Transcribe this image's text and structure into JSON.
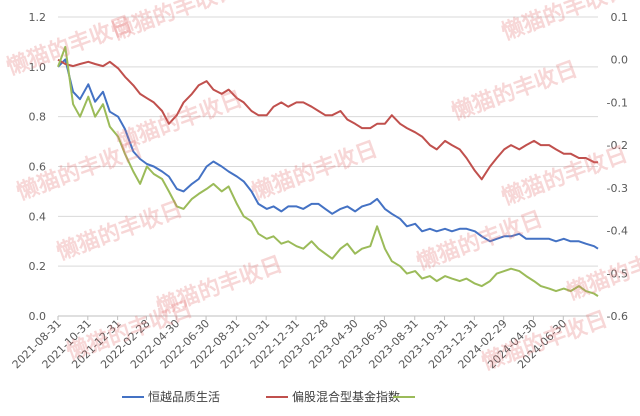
{
  "watermark": "懒猫的丰收日",
  "chart_data": {
    "type": "line",
    "x_tick_labels": [
      "2021-08-31",
      "2021-10-31",
      "2021-12-31",
      "2022-02-28",
      "2022-04-30",
      "2022-06-30",
      "2022-08-31",
      "2022-10-31",
      "2022-12-31",
      "2023-02-28",
      "2023-04-30",
      "2023-06-30",
      "2023-08-31",
      "2023-10-31",
      "2023-12-31",
      "2024-02-29",
      "2024-04-30",
      "2024-06-30"
    ],
    "xlim": [
      "2021-08-31",
      "2024-09-09"
    ],
    "y_left": {
      "ylim": [
        0.0,
        1.2
      ],
      "ticks": [
        "0.0",
        "0.2",
        "0.4",
        "0.6",
        "0.8",
        "1.0",
        "1.2"
      ]
    },
    "y_right": {
      "ylim": [
        -0.6,
        0.1
      ],
      "ticks": [
        "-0.6",
        "-0.5",
        "-0.4",
        "-0.3",
        "-0.2",
        "-0.1",
        "0.0",
        "0.1"
      ]
    },
    "grid": "horizontal",
    "legend_position": "bottom",
    "series": [
      {
        "name": "恒越品质生活",
        "axis": "left",
        "color": "#4472C4",
        "x": [
          "2021-08-31",
          "2021-09-15",
          "2021-10-01",
          "2021-10-15",
          "2021-11-01",
          "2021-11-15",
          "2021-12-01",
          "2021-12-15",
          "2022-01-01",
          "2022-01-15",
          "2022-02-01",
          "2022-02-15",
          "2022-03-01",
          "2022-03-15",
          "2022-04-01",
          "2022-04-15",
          "2022-05-01",
          "2022-05-15",
          "2022-06-01",
          "2022-06-15",
          "2022-07-01",
          "2022-07-15",
          "2022-08-01",
          "2022-08-15",
          "2022-09-01",
          "2022-09-15",
          "2022-10-01",
          "2022-10-15",
          "2022-11-01",
          "2022-11-15",
          "2022-12-01",
          "2022-12-15",
          "2023-01-01",
          "2023-01-15",
          "2023-02-01",
          "2023-02-15",
          "2023-03-01",
          "2023-03-15",
          "2023-04-01",
          "2023-04-15",
          "2023-05-01",
          "2023-05-15",
          "2023-06-01",
          "2023-06-15",
          "2023-07-01",
          "2023-07-15",
          "2023-08-01",
          "2023-08-15",
          "2023-09-01",
          "2023-09-15",
          "2023-10-01",
          "2023-10-15",
          "2023-11-01",
          "2023-11-15",
          "2023-12-01",
          "2023-12-15",
          "2024-01-01",
          "2024-01-15",
          "2024-02-01",
          "2024-02-15",
          "2024-03-01",
          "2024-03-15",
          "2024-04-01",
          "2024-04-15",
          "2024-05-01",
          "2024-05-15",
          "2024-06-01",
          "2024-06-15",
          "2024-07-01",
          "2024-07-15",
          "2024-08-01",
          "2024-08-15",
          "2024-09-01",
          "2024-09-09"
        ],
        "values": [
          1.0,
          1.03,
          0.9,
          0.87,
          0.93,
          0.86,
          0.9,
          0.82,
          0.8,
          0.75,
          0.66,
          0.63,
          0.61,
          0.6,
          0.58,
          0.56,
          0.51,
          0.5,
          0.53,
          0.55,
          0.6,
          0.62,
          0.6,
          0.58,
          0.56,
          0.54,
          0.5,
          0.45,
          0.43,
          0.44,
          0.42,
          0.44,
          0.44,
          0.43,
          0.45,
          0.45,
          0.43,
          0.41,
          0.43,
          0.44,
          0.42,
          0.44,
          0.45,
          0.47,
          0.43,
          0.41,
          0.39,
          0.36,
          0.37,
          0.34,
          0.35,
          0.34,
          0.35,
          0.34,
          0.35,
          0.35,
          0.34,
          0.32,
          0.3,
          0.31,
          0.32,
          0.32,
          0.33,
          0.31,
          0.31,
          0.31,
          0.31,
          0.3,
          0.31,
          0.3,
          0.3,
          0.29,
          0.28,
          0.27
        ]
      },
      {
        "name": "偏股混合型基金指数",
        "axis": "right",
        "color": "#C0504D",
        "x": [
          "2021-08-31",
          "2021-09-15",
          "2021-10-01",
          "2021-10-15",
          "2021-11-01",
          "2021-11-15",
          "2021-12-01",
          "2021-12-15",
          "2022-01-01",
          "2022-01-15",
          "2022-02-01",
          "2022-02-15",
          "2022-03-01",
          "2022-03-15",
          "2022-04-01",
          "2022-04-15",
          "2022-05-01",
          "2022-05-15",
          "2022-06-01",
          "2022-06-15",
          "2022-07-01",
          "2022-07-15",
          "2022-08-01",
          "2022-08-15",
          "2022-09-01",
          "2022-09-15",
          "2022-10-01",
          "2022-10-15",
          "2022-11-01",
          "2022-11-15",
          "2022-12-01",
          "2022-12-15",
          "2023-01-01",
          "2023-01-15",
          "2023-02-01",
          "2023-02-15",
          "2023-03-01",
          "2023-03-15",
          "2023-04-01",
          "2023-04-15",
          "2023-05-01",
          "2023-05-15",
          "2023-06-01",
          "2023-06-15",
          "2023-07-01",
          "2023-07-15",
          "2023-08-01",
          "2023-08-15",
          "2023-09-01",
          "2023-09-15",
          "2023-10-01",
          "2023-10-15",
          "2023-11-01",
          "2023-11-15",
          "2023-12-01",
          "2023-12-15",
          "2024-01-01",
          "2024-01-15",
          "2024-02-01",
          "2024-02-15",
          "2024-03-01",
          "2024-03-15",
          "2024-04-01",
          "2024-04-15",
          "2024-05-01",
          "2024-05-15",
          "2024-06-01",
          "2024-06-15",
          "2024-07-01",
          "2024-07-15",
          "2024-08-01",
          "2024-08-15",
          "2024-09-01",
          "2024-09-09"
        ],
        "values": [
          0.0,
          -0.01,
          -0.015,
          -0.01,
          -0.005,
          -0.01,
          -0.015,
          -0.005,
          -0.02,
          -0.04,
          -0.06,
          -0.08,
          -0.09,
          -0.1,
          -0.12,
          -0.15,
          -0.13,
          -0.1,
          -0.08,
          -0.06,
          -0.05,
          -0.07,
          -0.08,
          -0.07,
          -0.09,
          -0.1,
          -0.12,
          -0.13,
          -0.13,
          -0.11,
          -0.1,
          -0.11,
          -0.1,
          -0.1,
          -0.11,
          -0.12,
          -0.13,
          -0.13,
          -0.12,
          -0.14,
          -0.15,
          -0.16,
          -0.16,
          -0.15,
          -0.15,
          -0.13,
          -0.15,
          -0.16,
          -0.17,
          -0.18,
          -0.2,
          -0.21,
          -0.19,
          -0.2,
          -0.21,
          -0.23,
          -0.26,
          -0.28,
          -0.25,
          -0.23,
          -0.21,
          -0.2,
          -0.21,
          -0.2,
          -0.19,
          -0.2,
          -0.2,
          -0.21,
          -0.22,
          -0.22,
          -0.23,
          -0.23,
          -0.24,
          -0.24
        ]
      },
      {
        "name": "",
        "axis": "left",
        "color": "#9BBB59",
        "x": [
          "2021-08-31",
          "2021-09-15",
          "2021-10-01",
          "2021-10-15",
          "2021-11-01",
          "2021-11-15",
          "2021-12-01",
          "2021-12-15",
          "2022-01-01",
          "2022-01-15",
          "2022-02-01",
          "2022-02-15",
          "2022-03-01",
          "2022-03-15",
          "2022-04-01",
          "2022-04-15",
          "2022-05-01",
          "2022-05-15",
          "2022-06-01",
          "2022-06-15",
          "2022-07-01",
          "2022-07-15",
          "2022-08-01",
          "2022-08-15",
          "2022-09-01",
          "2022-09-15",
          "2022-10-01",
          "2022-10-15",
          "2022-11-01",
          "2022-11-15",
          "2022-12-01",
          "2022-12-15",
          "2023-01-01",
          "2023-01-15",
          "2023-02-01",
          "2023-02-15",
          "2023-03-01",
          "2023-03-15",
          "2023-04-01",
          "2023-04-15",
          "2023-05-01",
          "2023-05-15",
          "2023-06-01",
          "2023-06-15",
          "2023-07-01",
          "2023-07-15",
          "2023-08-01",
          "2023-08-15",
          "2023-09-01",
          "2023-09-15",
          "2023-10-01",
          "2023-10-15",
          "2023-11-01",
          "2023-11-15",
          "2023-12-01",
          "2023-12-15",
          "2024-01-01",
          "2024-01-15",
          "2024-02-01",
          "2024-02-15",
          "2024-03-01",
          "2024-03-15",
          "2024-04-01",
          "2024-04-15",
          "2024-05-01",
          "2024-05-15",
          "2024-06-01",
          "2024-06-15",
          "2024-07-01",
          "2024-07-15",
          "2024-08-01",
          "2024-08-15",
          "2024-09-01",
          "2024-09-09"
        ],
        "values": [
          1.0,
          1.08,
          0.85,
          0.8,
          0.88,
          0.8,
          0.85,
          0.76,
          0.72,
          0.65,
          0.58,
          0.53,
          0.6,
          0.57,
          0.55,
          0.5,
          0.44,
          0.43,
          0.47,
          0.49,
          0.51,
          0.53,
          0.5,
          0.52,
          0.45,
          0.4,
          0.38,
          0.33,
          0.31,
          0.32,
          0.29,
          0.3,
          0.28,
          0.27,
          0.3,
          0.27,
          0.25,
          0.23,
          0.27,
          0.29,
          0.25,
          0.27,
          0.28,
          0.36,
          0.27,
          0.22,
          0.2,
          0.17,
          0.18,
          0.15,
          0.16,
          0.14,
          0.16,
          0.15,
          0.14,
          0.15,
          0.13,
          0.12,
          0.14,
          0.17,
          0.18,
          0.19,
          0.18,
          0.16,
          0.14,
          0.12,
          0.11,
          0.1,
          0.11,
          0.1,
          0.12,
          0.1,
          0.09,
          0.08
        ]
      }
    ]
  }
}
